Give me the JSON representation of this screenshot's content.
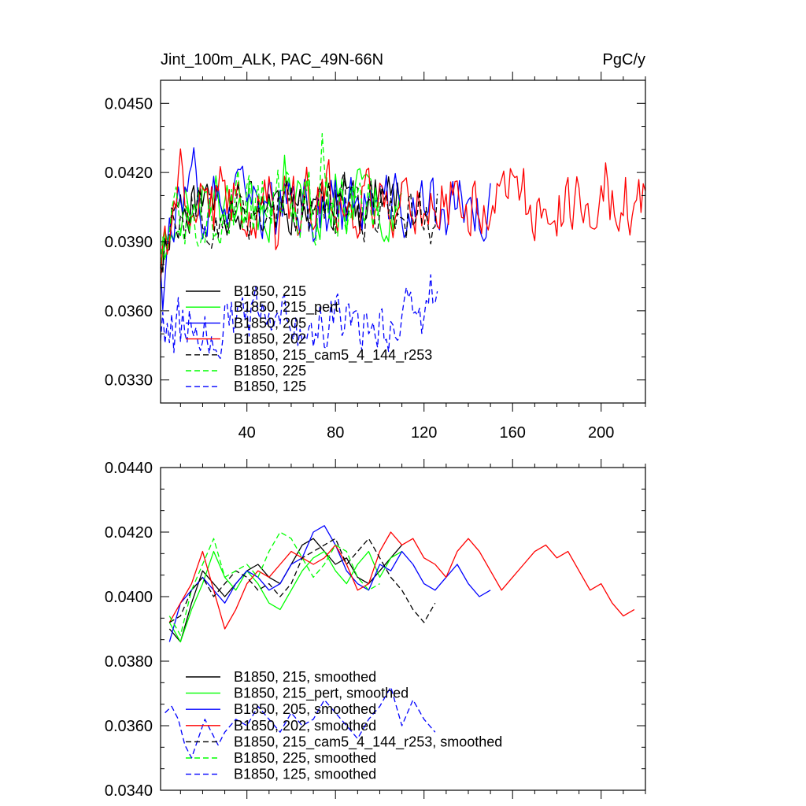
{
  "chart_data": [
    {
      "type": "line",
      "title": "Jint_100m_ALK, PAC_49N-66N",
      "units": "PgC/y",
      "xlim": [
        1,
        220
      ],
      "ylim": [
        0.032,
        0.046
      ],
      "x_ticks": [
        40,
        80,
        120,
        160,
        200
      ],
      "x_tick_labels": [
        "40",
        "80",
        "120",
        "160",
        "200"
      ],
      "y_ticks": [
        0.033,
        0.036,
        0.039,
        0.042,
        0.045
      ],
      "y_tick_labels": [
        "0.0330",
        "0.0360",
        "0.0390",
        "0.0420",
        "0.0450"
      ],
      "legend_position": "lower-left",
      "series": [
        {
          "name": "B1850, 215",
          "color": "#000000",
          "dash": "solid",
          "n": 110,
          "seed": 11,
          "start": 0.0378,
          "base": 0.0408,
          "amp": 0.0011
        },
        {
          "name": "B1850, 215_pert",
          "color": "#00ff00",
          "dash": "solid",
          "n": 110,
          "seed": 23,
          "start": 0.038,
          "base": 0.0407,
          "amp": 0.0012
        },
        {
          "name": "B1850, 205",
          "color": "#0000ff",
          "dash": "solid",
          "n": 150,
          "seed": 37,
          "start": 0.0383,
          "base": 0.0405,
          "amp": 0.0012
        },
        {
          "name": "B1850, 202",
          "color": "#ff0000",
          "dash": "solid",
          "n": 220,
          "seed": 41,
          "start": 0.0376,
          "base": 0.0408,
          "amp": 0.0013
        },
        {
          "name": "B1850, 215_cam5_4_144_r253",
          "color": "#000000",
          "dash": "dashed",
          "n": 126,
          "seed": 53,
          "start": 0.0384,
          "base": 0.0404,
          "amp": 0.0012
        },
        {
          "name": "B1850, 225",
          "color": "#00ff00",
          "dash": "dashed",
          "n": 100,
          "seed": 67,
          "start": 0.0385,
          "base": 0.0406,
          "amp": 0.0013
        },
        {
          "name": "B1850, 125",
          "color": "#0000ff",
          "dash": "dashed",
          "n": 126,
          "seed": 79,
          "start": 0.0352,
          "base": 0.0355,
          "amp": 0.0011
        }
      ]
    },
    {
      "type": "line",
      "xlim": [
        1,
        220
      ],
      "ylim": [
        0.034,
        0.044
      ],
      "y_ticks": [
        0.034,
        0.036,
        0.038,
        0.04,
        0.042,
        0.044
      ],
      "y_tick_labels": [
        "0.0340",
        "0.0360",
        "0.0380",
        "0.0400",
        "0.0420",
        "0.0440"
      ],
      "x_ticks": [
        40,
        80,
        120,
        160,
        200
      ],
      "legend_position": "lower-left",
      "series": [
        {
          "name": "B1850, 215, smoothed",
          "color": "#000000",
          "dash": "solid",
          "points": [
            [
              5,
              0.039
            ],
            [
              10,
              0.0386
            ],
            [
              15,
              0.0398
            ],
            [
              20,
              0.0408
            ],
            [
              25,
              0.0404
            ],
            [
              30,
              0.04
            ],
            [
              35,
              0.0404
            ],
            [
              40,
              0.0408
            ],
            [
              45,
              0.041
            ],
            [
              50,
              0.0406
            ],
            [
              55,
              0.0404
            ],
            [
              60,
              0.041
            ],
            [
              65,
              0.0416
            ],
            [
              70,
              0.0418
            ],
            [
              75,
              0.0414
            ],
            [
              80,
              0.041
            ],
            [
              85,
              0.0412
            ],
            [
              90,
              0.0406
            ],
            [
              95,
              0.0404
            ],
            [
              100,
              0.0408
            ],
            [
              105,
              0.0412
            ],
            [
              110,
              0.0416
            ]
          ]
        },
        {
          "name": "B1850, 215_pert, smoothed",
          "color": "#00ff00",
          "dash": "solid",
          "points": [
            [
              5,
              0.0392
            ],
            [
              10,
              0.0386
            ],
            [
              15,
              0.0396
            ],
            [
              20,
              0.0404
            ],
            [
              25,
              0.0414
            ],
            [
              30,
              0.0406
            ],
            [
              35,
              0.0402
            ],
            [
              40,
              0.0408
            ],
            [
              45,
              0.0404
            ],
            [
              50,
              0.0398
            ],
            [
              55,
              0.0396
            ],
            [
              60,
              0.0402
            ],
            [
              65,
              0.0408
            ],
            [
              70,
              0.0412
            ],
            [
              75,
              0.0414
            ],
            [
              80,
              0.0408
            ],
            [
              85,
              0.0404
            ],
            [
              90,
              0.041
            ],
            [
              95,
              0.0414
            ],
            [
              100,
              0.0406
            ],
            [
              105,
              0.0412
            ],
            [
              110,
              0.0414
            ]
          ]
        },
        {
          "name": "B1850, 205, smoothed",
          "color": "#0000ff",
          "dash": "solid",
          "points": [
            [
              5,
              0.0386
            ],
            [
              10,
              0.0398
            ],
            [
              15,
              0.0402
            ],
            [
              20,
              0.0406
            ],
            [
              25,
              0.0402
            ],
            [
              30,
              0.0398
            ],
            [
              35,
              0.0404
            ],
            [
              40,
              0.0408
            ],
            [
              45,
              0.0406
            ],
            [
              50,
              0.0402
            ],
            [
              55,
              0.0404
            ],
            [
              60,
              0.041
            ],
            [
              65,
              0.0412
            ],
            [
              70,
              0.042
            ],
            [
              75,
              0.0422
            ],
            [
              80,
              0.0416
            ],
            [
              85,
              0.0408
            ],
            [
              90,
              0.0404
            ],
            [
              95,
              0.0402
            ],
            [
              100,
              0.041
            ],
            [
              105,
              0.0408
            ],
            [
              110,
              0.0414
            ],
            [
              115,
              0.041
            ],
            [
              120,
              0.0404
            ],
            [
              125,
              0.0402
            ],
            [
              130,
              0.0406
            ],
            [
              135,
              0.041
            ],
            [
              140,
              0.0404
            ],
            [
              145,
              0.04
            ],
            [
              150,
              0.0402
            ]
          ]
        },
        {
          "name": "B1850, 202, smoothed",
          "color": "#ff0000",
          "dash": "solid",
          "points": [
            [
              5,
              0.0392
            ],
            [
              10,
              0.0398
            ],
            [
              15,
              0.0404
            ],
            [
              20,
              0.0414
            ],
            [
              25,
              0.0402
            ],
            [
              30,
              0.039
            ],
            [
              35,
              0.0396
            ],
            [
              40,
              0.0404
            ],
            [
              45,
              0.0408
            ],
            [
              50,
              0.0406
            ],
            [
              55,
              0.041
            ],
            [
              60,
              0.0414
            ],
            [
              65,
              0.0412
            ],
            [
              70,
              0.041
            ],
            [
              75,
              0.0412
            ],
            [
              80,
              0.0416
            ],
            [
              85,
              0.041
            ],
            [
              90,
              0.0402
            ],
            [
              95,
              0.0404
            ],
            [
              100,
              0.0414
            ],
            [
              105,
              0.042
            ],
            [
              110,
              0.0416
            ],
            [
              115,
              0.0418
            ],
            [
              120,
              0.0412
            ],
            [
              125,
              0.041
            ],
            [
              130,
              0.0406
            ],
            [
              135,
              0.0414
            ],
            [
              140,
              0.0418
            ],
            [
              145,
              0.0414
            ],
            [
              150,
              0.0408
            ],
            [
              155,
              0.0402
            ],
            [
              160,
              0.0406
            ],
            [
              165,
              0.041
            ],
            [
              170,
              0.0414
            ],
            [
              175,
              0.0416
            ],
            [
              180,
              0.0412
            ],
            [
              185,
              0.0414
            ],
            [
              190,
              0.0408
            ],
            [
              195,
              0.0402
            ],
            [
              200,
              0.0404
            ],
            [
              205,
              0.0398
            ],
            [
              210,
              0.0394
            ],
            [
              215,
              0.0396
            ]
          ]
        },
        {
          "name": "B1850, 215_cam5_4_144_r253, smoothed",
          "color": "#000000",
          "dash": "dashed",
          "points": [
            [
              5,
              0.0392
            ],
            [
              10,
              0.0394
            ],
            [
              15,
              0.0402
            ],
            [
              20,
              0.0406
            ],
            [
              25,
              0.04
            ],
            [
              30,
              0.0404
            ],
            [
              35,
              0.0408
            ],
            [
              40,
              0.0406
            ],
            [
              45,
              0.0402
            ],
            [
              50,
              0.0404
            ],
            [
              55,
              0.04
            ],
            [
              60,
              0.0404
            ],
            [
              65,
              0.0412
            ],
            [
              70,
              0.0414
            ],
            [
              75,
              0.0416
            ],
            [
              80,
              0.0418
            ],
            [
              85,
              0.041
            ],
            [
              90,
              0.0414
            ],
            [
              95,
              0.0418
            ],
            [
              100,
              0.0412
            ],
            [
              105,
              0.0406
            ],
            [
              110,
              0.0402
            ],
            [
              115,
              0.0396
            ],
            [
              120,
              0.0392
            ],
            [
              125,
              0.0398
            ]
          ]
        },
        {
          "name": "B1850, 225, smoothed",
          "color": "#00ff00",
          "dash": "dashed",
          "points": [
            [
              5,
              0.0394
            ],
            [
              10,
              0.0388
            ],
            [
              15,
              0.0402
            ],
            [
              20,
              0.041
            ],
            [
              25,
              0.0418
            ],
            [
              30,
              0.0406
            ],
            [
              35,
              0.0408
            ],
            [
              40,
              0.041
            ],
            [
              45,
              0.0406
            ],
            [
              50,
              0.0414
            ],
            [
              55,
              0.042
            ],
            [
              60,
              0.0418
            ],
            [
              65,
              0.0412
            ],
            [
              70,
              0.0406
            ],
            [
              75,
              0.041
            ],
            [
              80,
              0.0416
            ],
            [
              85,
              0.0414
            ],
            [
              90,
              0.0406
            ],
            [
              95,
              0.0402
            ],
            [
              100,
              0.0404
            ]
          ]
        },
        {
          "name": "B1850, 125, smoothed",
          "color": "#0000ff",
          "dash": "dashed",
          "points": [
            [
              3,
              0.0364
            ],
            [
              6,
              0.0366
            ],
            [
              9,
              0.0362
            ],
            [
              12,
              0.0354
            ],
            [
              15,
              0.035
            ],
            [
              18,
              0.0356
            ],
            [
              21,
              0.0362
            ],
            [
              24,
              0.0358
            ],
            [
              27,
              0.0354
            ],
            [
              30,
              0.0358
            ],
            [
              35,
              0.0362
            ],
            [
              40,
              0.036
            ],
            [
              45,
              0.0366
            ],
            [
              50,
              0.0362
            ],
            [
              55,
              0.0358
            ],
            [
              60,
              0.0364
            ],
            [
              65,
              0.036
            ],
            [
              70,
              0.0362
            ],
            [
              75,
              0.0368
            ],
            [
              80,
              0.0364
            ],
            [
              85,
              0.036
            ],
            [
              90,
              0.0356
            ],
            [
              95,
              0.0362
            ],
            [
              100,
              0.0366
            ],
            [
              105,
              0.0372
            ],
            [
              110,
              0.036
            ],
            [
              115,
              0.0368
            ],
            [
              120,
              0.0362
            ],
            [
              125,
              0.0358
            ]
          ]
        }
      ]
    }
  ]
}
